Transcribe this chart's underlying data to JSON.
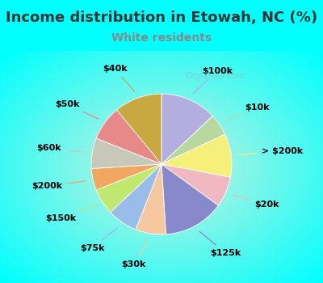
{
  "title": "Income distribution in Etowah, NC (%)",
  "subtitle": "White residents",
  "labels": [
    "$100k",
    "$10k",
    "> $200k",
    "$20k",
    "$125k",
    "$30k",
    "$75k",
    "$150k",
    "$200k",
    "$60k",
    "$50k",
    "$40k"
  ],
  "sizes": [
    13,
    5,
    10,
    7,
    14,
    7,
    7,
    6,
    5,
    7,
    8,
    11
  ],
  "colors": [
    "#b3aee0",
    "#b8d8a0",
    "#f5f07a",
    "#f0b8c0",
    "#8888cc",
    "#f5c8a0",
    "#9abce8",
    "#c0e870",
    "#f0a860",
    "#c8c8b8",
    "#e88888",
    "#c8a840"
  ],
  "bg_color": "#00ffff",
  "subtitle_color": "#888888",
  "title_color": "#333333",
  "label_fontsize": 8,
  "title_fontsize": 13,
  "subtitle_fontsize": 10,
  "watermark": "City-Data.com",
  "watermark_color": "#aaaaaa"
}
